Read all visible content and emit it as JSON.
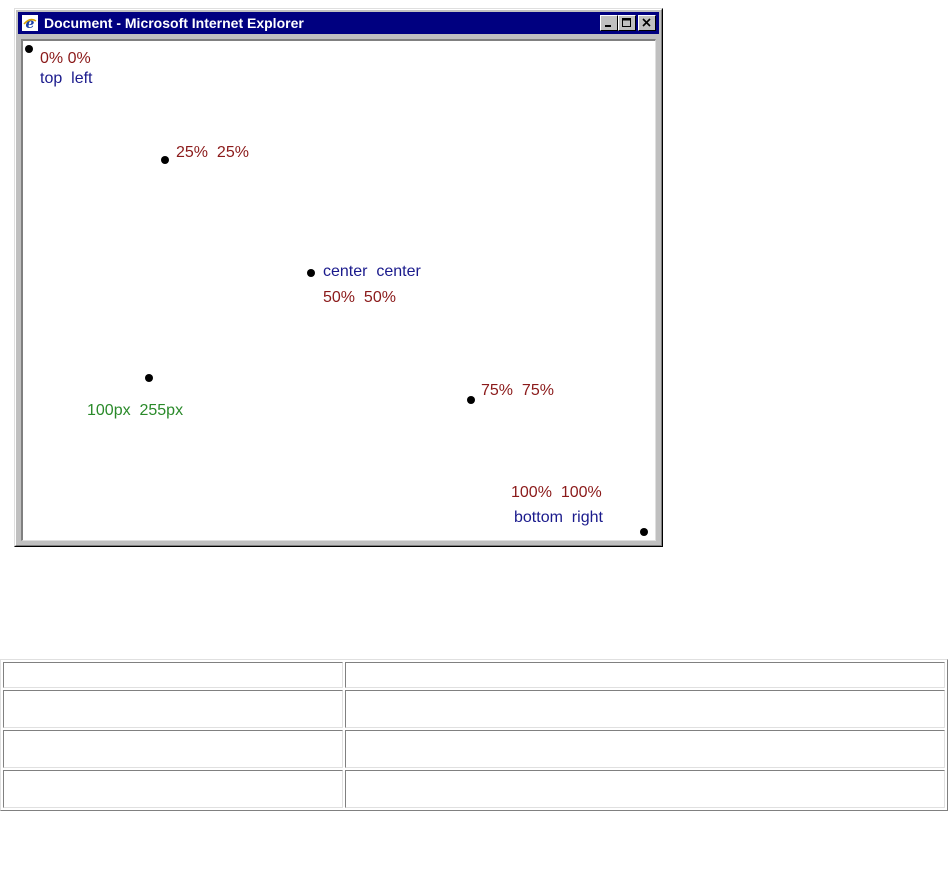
{
  "window": {
    "title": "Document - Microsoft Internet Explorer",
    "buttons": [
      "minimize",
      "maximize",
      "close"
    ]
  },
  "markers": {
    "topleft": {
      "pos": "0% 0%",
      "keyword": "top  left"
    },
    "quarter": {
      "pos": "25%  25%"
    },
    "center": {
      "keyword": "center  center",
      "pos": "50%  50%"
    },
    "pixels": {
      "pos": "100px  255px"
    },
    "threequarter": {
      "pos": "75%  75%"
    },
    "bottomright": {
      "pos": "100%  100%",
      "keyword": "bottom  right"
    }
  },
  "colors": {
    "percent": "#8b1a1a",
    "keyword": "#1a1a8c",
    "pixel": "#2a8a2a"
  },
  "table": {
    "rows": [
      [
        "",
        ""
      ],
      [
        "",
        ""
      ],
      [
        "",
        ""
      ],
      [
        "",
        ""
      ]
    ]
  }
}
